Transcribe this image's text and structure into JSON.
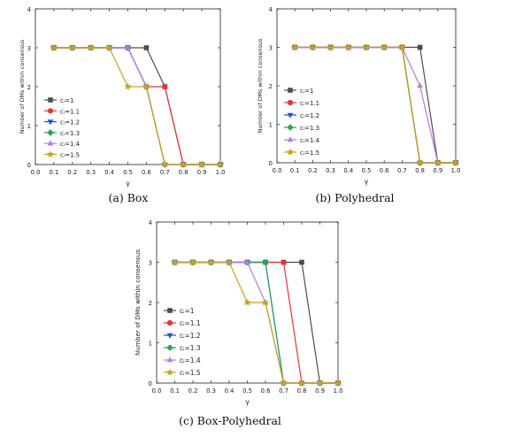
{
  "chart_data": [
    {
      "type": "line",
      "caption": "(a) Box",
      "xlabel": "γ",
      "ylabel": "Number of DMs within consensus",
      "xlim": [
        0.0,
        1.0
      ],
      "ylim": [
        0,
        4
      ],
      "xticks": [
        "0.0",
        "0.1",
        "0.2",
        "0.3",
        "0.4",
        "0.5",
        "0.6",
        "0.7",
        "0.8",
        "0.9",
        "1.0"
      ],
      "yticks": [
        "0",
        "1",
        "2",
        "3",
        "4"
      ],
      "legend_position": "left",
      "x": [
        0.1,
        0.2,
        0.3,
        0.4,
        0.5,
        0.6,
        0.7,
        0.8,
        0.9,
        1.0
      ],
      "series": [
        {
          "name": "cᵢ=1",
          "color": "#4d4d4d",
          "marker": "square",
          "values": [
            3,
            3,
            3,
            3,
            3,
            3,
            2,
            0,
            0,
            0
          ]
        },
        {
          "name": "cᵢ=1.1",
          "color": "#e8343a",
          "marker": "circle",
          "values": [
            3,
            3,
            3,
            3,
            3,
            2,
            2,
            0,
            0,
            0
          ]
        },
        {
          "name": "cᵢ=1.2",
          "color": "#1f4fd6",
          "marker": "triangle-down",
          "values": [
            3,
            3,
            3,
            3,
            3,
            2,
            0,
            0,
            0,
            0
          ]
        },
        {
          "name": "cᵢ=1.3",
          "color": "#27a35a",
          "marker": "diamond",
          "values": [
            3,
            3,
            3,
            3,
            3,
            2,
            0,
            0,
            0,
            0
          ]
        },
        {
          "name": "cᵢ=1.4",
          "color": "#b57be8",
          "marker": "triangle-up",
          "values": [
            3,
            3,
            3,
            3,
            3,
            2,
            0,
            0,
            0,
            0
          ]
        },
        {
          "name": "cᵢ=1.5",
          "color": "#c9a21a",
          "marker": "star",
          "values": [
            3,
            3,
            3,
            3,
            2,
            2,
            0,
            0,
            0,
            0
          ]
        }
      ]
    },
    {
      "type": "line",
      "caption": "(b) Polyhedral",
      "xlabel": "γ",
      "ylabel": "Number of DMs within consensus",
      "xlim": [
        0.0,
        1.0
      ],
      "ylim": [
        0,
        4
      ],
      "xticks": [
        "0.0",
        "0.1",
        "0.2",
        "0.3",
        "0.4",
        "0.5",
        "0.6",
        "0.7",
        "0.8",
        "0.9",
        "1.0"
      ],
      "yticks": [
        "0",
        "1",
        "2",
        "3",
        "4"
      ],
      "legend_position": "left",
      "x": [
        0.1,
        0.2,
        0.3,
        0.4,
        0.5,
        0.6,
        0.7,
        0.8,
        0.9,
        1.0
      ],
      "series": [
        {
          "name": "cᵢ=1",
          "color": "#4d4d4d",
          "marker": "square",
          "values": [
            3,
            3,
            3,
            3,
            3,
            3,
            3,
            3,
            0,
            0
          ]
        },
        {
          "name": "cᵢ=1.1",
          "color": "#e8343a",
          "marker": "circle",
          "values": [
            3,
            3,
            3,
            3,
            3,
            3,
            3,
            0,
            0,
            0
          ]
        },
        {
          "name": "cᵢ=1.2",
          "color": "#1f4fd6",
          "marker": "triangle-down",
          "values": [
            3,
            3,
            3,
            3,
            3,
            3,
            3,
            0,
            0,
            0
          ]
        },
        {
          "name": "cᵢ=1.3",
          "color": "#27a35a",
          "marker": "diamond",
          "values": [
            3,
            3,
            3,
            3,
            3,
            3,
            3,
            0,
            0,
            0
          ]
        },
        {
          "name": "cᵢ=1.4",
          "color": "#b57be8",
          "marker": "triangle-up",
          "values": [
            3,
            3,
            3,
            3,
            3,
            3,
            3,
            2,
            0,
            0
          ]
        },
        {
          "name": "cᵢ=1.5",
          "color": "#c9a21a",
          "marker": "star",
          "values": [
            3,
            3,
            3,
            3,
            3,
            3,
            3,
            0,
            0,
            0
          ]
        }
      ]
    },
    {
      "type": "line",
      "caption": "(c) Box-Polyhedral",
      "xlabel": "γ",
      "ylabel": "Number of DMs within consensus",
      "xlim": [
        0.0,
        1.0
      ],
      "ylim": [
        0,
        4
      ],
      "xticks": [
        "0.0",
        "0.1",
        "0.2",
        "0.3",
        "0.4",
        "0.5",
        "0.6",
        "0.7",
        "0.8",
        "0.9",
        "1.0"
      ],
      "yticks": [
        "0",
        "1",
        "2",
        "3",
        "4"
      ],
      "legend_position": "left",
      "x": [
        0.1,
        0.2,
        0.3,
        0.4,
        0.5,
        0.6,
        0.7,
        0.8,
        0.9,
        1.0
      ],
      "series": [
        {
          "name": "cᵢ=1",
          "color": "#4d4d4d",
          "marker": "square",
          "values": [
            3,
            3,
            3,
            3,
            3,
            3,
            3,
            3,
            0,
            0
          ]
        },
        {
          "name": "cᵢ=1.1",
          "color": "#e8343a",
          "marker": "circle",
          "values": [
            3,
            3,
            3,
            3,
            3,
            3,
            3,
            0,
            0,
            0
          ]
        },
        {
          "name": "cᵢ=1.2",
          "color": "#1f4fd6",
          "marker": "triangle-down",
          "values": [
            3,
            3,
            3,
            3,
            3,
            3,
            0,
            0,
            0,
            0
          ]
        },
        {
          "name": "cᵢ=1.3",
          "color": "#27a35a",
          "marker": "diamond",
          "values": [
            3,
            3,
            3,
            3,
            3,
            3,
            0,
            0,
            0,
            0
          ]
        },
        {
          "name": "cᵢ=1.4",
          "color": "#b57be8",
          "marker": "triangle-up",
          "values": [
            3,
            3,
            3,
            3,
            3,
            2,
            0,
            0,
            0,
            0
          ]
        },
        {
          "name": "cᵢ=1.5",
          "color": "#c9a21a",
          "marker": "star",
          "values": [
            3,
            3,
            3,
            3,
            2,
            2,
            0,
            0,
            0,
            0
          ]
        }
      ]
    }
  ]
}
